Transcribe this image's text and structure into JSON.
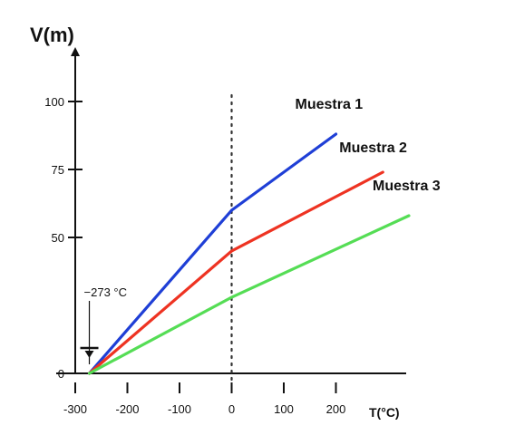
{
  "chart_data": {
    "type": "line",
    "ylabel": "V(m)",
    "xlabel": "T(°C)",
    "xlim": [
      -300,
      300
    ],
    "ylim": [
      0,
      110
    ],
    "x_ticks": [
      -300,
      -200,
      -100,
      0,
      100,
      200
    ],
    "x_tick_labels": [
      "-300",
      "-200",
      "-100",
      "0",
      "100",
      "200"
    ],
    "y_ticks": [
      0,
      50,
      75,
      100
    ],
    "y_tick_labels": [
      "0",
      "50",
      "75",
      "100"
    ],
    "reference_line": {
      "x": 0,
      "style": "dotted"
    },
    "annotation": {
      "label": "−273 °C",
      "x": -273
    },
    "series": [
      {
        "name": "Muestra 1",
        "color": "#1f3fd6",
        "x": [
          -273,
          0,
          200
        ],
        "y": [
          0,
          60,
          88
        ]
      },
      {
        "name": "Muestra 2",
        "color": "#ee3322",
        "x": [
          -273,
          0,
          290
        ],
        "y": [
          0,
          45,
          74
        ]
      },
      {
        "name": "Muestra 3",
        "color": "#55dd55",
        "x": [
          -273,
          0,
          340
        ],
        "y": [
          0,
          28,
          58
        ]
      }
    ],
    "grid": false,
    "legend": "inline labels near line ends"
  }
}
